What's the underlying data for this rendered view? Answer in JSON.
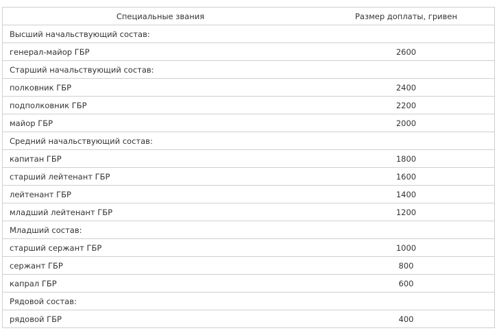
{
  "header": {
    "rank": "Специальные звания",
    "amount": "Размер доплаты, гривен"
  },
  "rows": [
    {
      "type": "group",
      "label": "Высший начальствующий состав:"
    },
    {
      "type": "item",
      "rank": "генерал-майор ГБР",
      "amount": "2600"
    },
    {
      "type": "group",
      "label": "Старший начальствующий состав:"
    },
    {
      "type": "item",
      "rank": "полковник ГБР",
      "amount": "2400"
    },
    {
      "type": "item",
      "rank": "подполковник ГБР",
      "amount": "2200"
    },
    {
      "type": "item",
      "rank": "майор ГБР",
      "amount": "2000"
    },
    {
      "type": "group",
      "label": "Средний начальствующий состав:"
    },
    {
      "type": "item",
      "rank": "капитан ГБР",
      "amount": "1800"
    },
    {
      "type": "item",
      "rank": "старший лейтенант ГБР",
      "amount": "1600"
    },
    {
      "type": "item",
      "rank": "лейтенант ГБР",
      "amount": "1400"
    },
    {
      "type": "item",
      "rank": "младший лейтенант ГБР",
      "amount": "1200"
    },
    {
      "type": "group",
      "label": "Младший состав:"
    },
    {
      "type": "item",
      "rank": "старший сержант ГБР",
      "amount": "1000"
    },
    {
      "type": "item",
      "rank": "сержант ГБР",
      "amount": "800"
    },
    {
      "type": "item",
      "rank": "капрал ГБР",
      "amount": "600"
    },
    {
      "type": "group",
      "label": "Рядовой состав:"
    },
    {
      "type": "item",
      "rank": "рядовой ГБР",
      "amount": "400"
    }
  ]
}
